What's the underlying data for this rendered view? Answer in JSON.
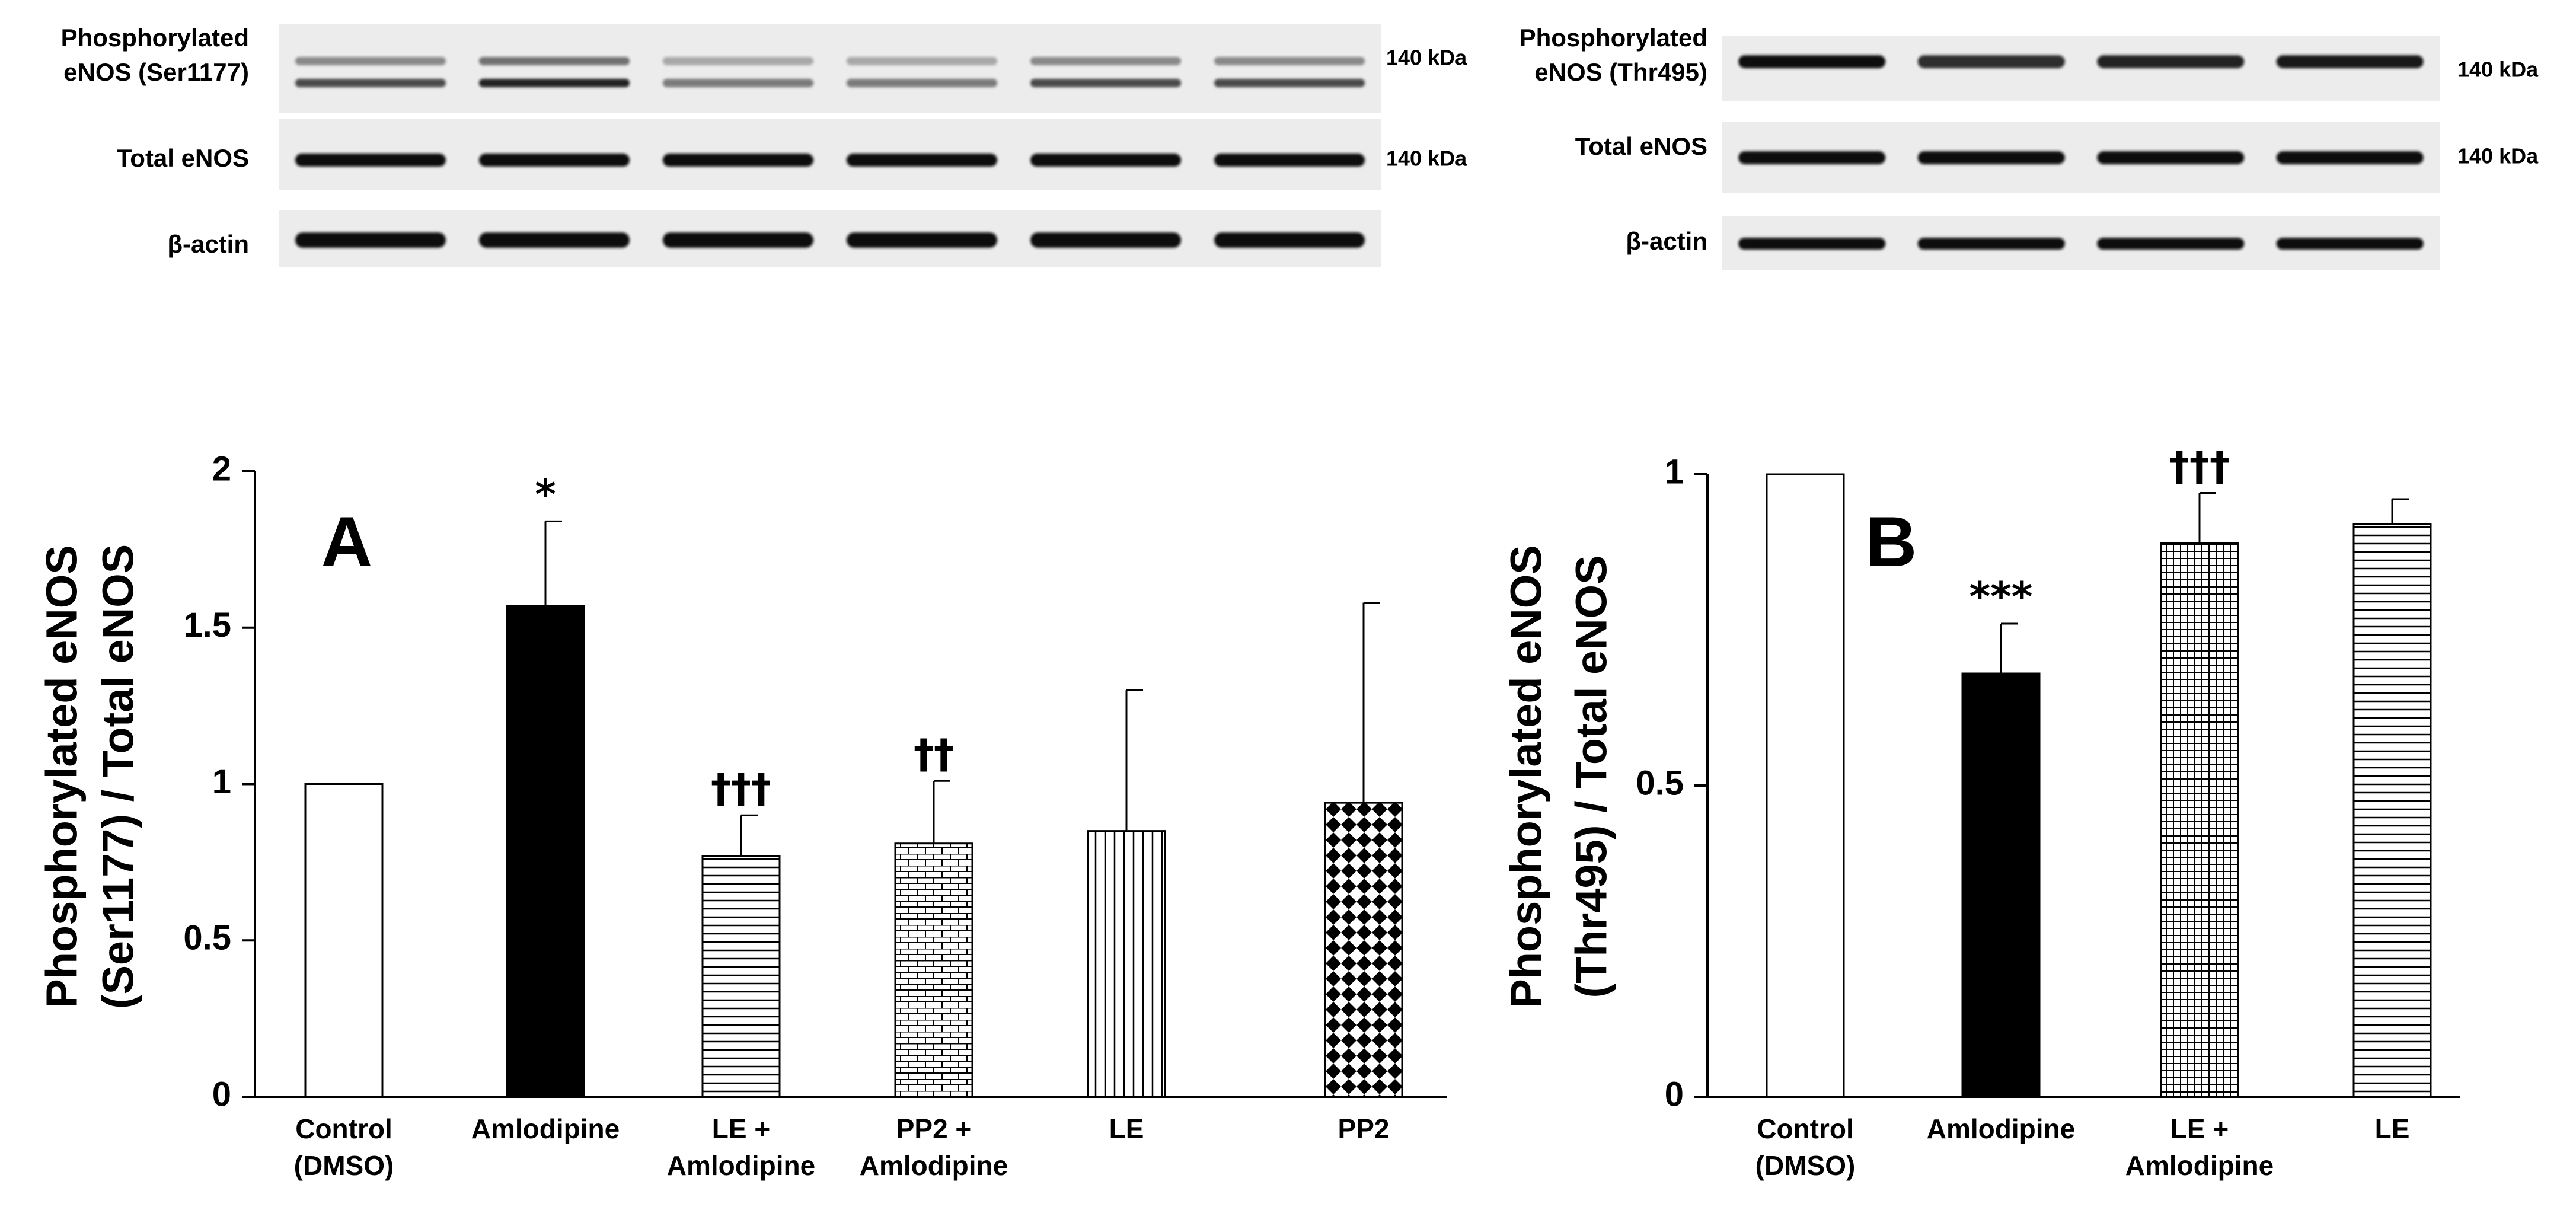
{
  "blots": {
    "left": {
      "rows": [
        {
          "label": [
            "Phosphorylated",
            "eNOS (Ser1177)"
          ],
          "kda": "140 kDa"
        },
        {
          "label": [
            "Total eNOS"
          ],
          "kda": "140 kDa"
        },
        {
          "label": [
            "β-actin"
          ],
          "kda": ""
        }
      ],
      "lanes": 6
    },
    "right": {
      "rows": [
        {
          "label": [
            "Phosphorylated",
            "eNOS (Thr495)"
          ],
          "kda": "140 kDa"
        },
        {
          "label": [
            "Total eNOS"
          ],
          "kda": "140 kDa"
        },
        {
          "label": [
            "β-actin"
          ],
          "kda": ""
        }
      ],
      "lanes": 4
    }
  },
  "chart_data": [
    {
      "type": "bar",
      "panel_label": "A",
      "categories": [
        [
          "Control",
          "(DMSO)"
        ],
        [
          "Amlodipine"
        ],
        [
          "LE +",
          "Amlodipine"
        ],
        [
          "PP2 +",
          "Amlodipine"
        ],
        [
          "LE"
        ],
        [
          "PP2"
        ]
      ],
      "values": [
        1.0,
        1.57,
        0.77,
        0.81,
        0.85,
        0.94
      ],
      "errors": [
        0,
        0.27,
        0.13,
        0.2,
        0.45,
        0.64
      ],
      "patterns": [
        "white",
        "black",
        "hlines",
        "brick",
        "vlines",
        "diamonds"
      ],
      "annotations": [
        "",
        "*",
        "†††",
        "††",
        "",
        ""
      ],
      "ylabel": [
        "Phosphorylated eNOS",
        "(Ser1177) / Total eNOS"
      ],
      "xlabel": "",
      "ylim": [
        0,
        2
      ],
      "yticks": [
        0,
        0.5,
        1,
        1.5,
        2
      ],
      "ytick_labels": [
        "0",
        "0.5",
        "1",
        "1.5",
        "2"
      ],
      "grid": false
    },
    {
      "type": "bar",
      "panel_label": "B",
      "categories": [
        [
          "Control",
          "(DMSO)"
        ],
        [
          "Amlodipine"
        ],
        [
          "LE +",
          "Amlodipine"
        ],
        [
          "LE"
        ]
      ],
      "values": [
        1.0,
        0.68,
        0.89,
        0.92
      ],
      "errors": [
        0,
        0.08,
        0.08,
        0.04
      ],
      "patterns": [
        "white",
        "black",
        "grid",
        "hlines"
      ],
      "annotations": [
        "",
        "***",
        "†††",
        ""
      ],
      "ylabel": [
        "Phosphorylated eNOS",
        "(Thr495) / Total eNOS"
      ],
      "xlabel": "",
      "ylim": [
        0,
        1
      ],
      "yticks": [
        0,
        0.5,
        1
      ],
      "ytick_labels": [
        "0",
        "0.5",
        "1"
      ],
      "grid": false
    }
  ]
}
